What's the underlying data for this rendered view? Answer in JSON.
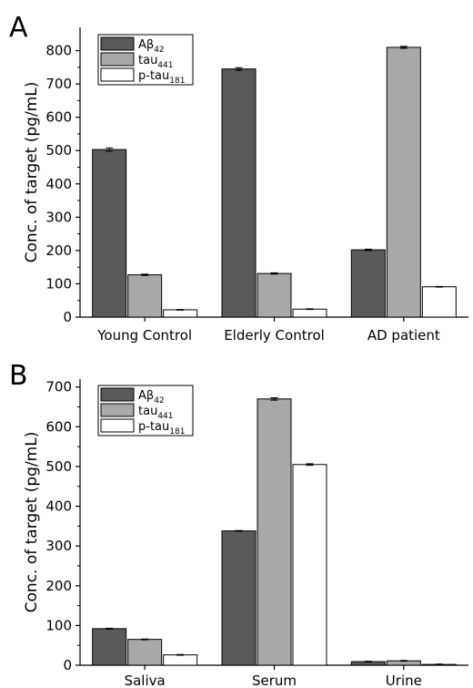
{
  "panel_labels": [
    "A",
    "B"
  ],
  "colors": {
    "abeta": "#5a5a5a",
    "tau": "#a8a8a8",
    "ptau": "#ffffff"
  },
  "chart_data": [
    {
      "type": "bar",
      "panel": "A",
      "categories": [
        "Young Control",
        "Elderly Control",
        "AD patient"
      ],
      "series": [
        {
          "name": "Aβ",
          "sub": "42",
          "values": [
            503,
            745,
            202
          ],
          "errors": [
            5,
            4,
            2
          ]
        },
        {
          "name": "tau",
          "sub": "441",
          "values": [
            127,
            131,
            810
          ],
          "errors": [
            2,
            2,
            3
          ]
        },
        {
          "name": "p-tau",
          "sub": "181",
          "values": [
            22,
            24,
            91
          ],
          "errors": [
            1,
            1,
            1
          ]
        }
      ],
      "xlabel": "",
      "ylabel": "Conc. of target (pg/mL)",
      "ylim": [
        0,
        870
      ],
      "yticks": [
        0,
        100,
        200,
        300,
        400,
        500,
        600,
        700,
        800
      ],
      "legend": "top-left"
    },
    {
      "type": "bar",
      "panel": "B",
      "categories": [
        "Saliva",
        "Serum",
        "Urine"
      ],
      "series": [
        {
          "name": "Aβ",
          "sub": "42",
          "values": [
            92,
            338,
            9
          ],
          "errors": [
            1,
            1,
            1
          ]
        },
        {
          "name": "tau",
          "sub": "441",
          "values": [
            65,
            670,
            11
          ],
          "errors": [
            1,
            3,
            1
          ]
        },
        {
          "name": "p-tau",
          "sub": "181",
          "values": [
            26,
            505,
            2
          ],
          "errors": [
            1,
            2,
            1
          ]
        }
      ],
      "xlabel": "",
      "ylabel": "Conc. of target (pg/mL)",
      "ylim": [
        0,
        720
      ],
      "yticks": [
        0,
        100,
        200,
        300,
        400,
        500,
        600,
        700
      ],
      "legend": "top-left"
    }
  ]
}
